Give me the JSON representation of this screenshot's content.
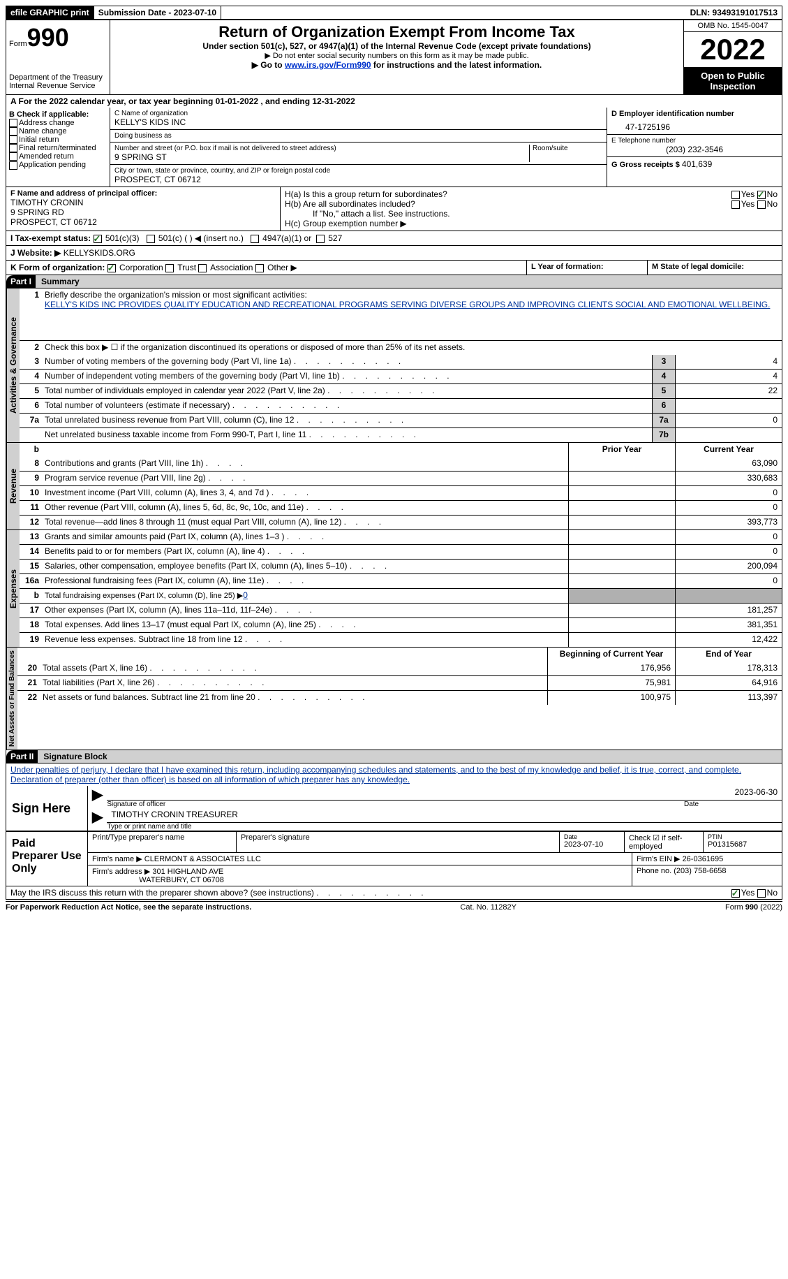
{
  "top": {
    "efile": "efile GRAPHIC print",
    "submission_label": "Submission Date - 2023-07-10",
    "dln_label": "DLN: 93493191017513"
  },
  "header": {
    "form_label": "Form",
    "form_num": "990",
    "dept": "Department of the Treasury",
    "irs": "Internal Revenue Service",
    "title": "Return of Organization Exempt From Income Tax",
    "subtitle": "Under section 501(c), 527, or 4947(a)(1) of the Internal Revenue Code (except private foundations)",
    "note1": "▶ Do not enter social security numbers on this form as it may be made public.",
    "note2_pre": "▶ Go to ",
    "note2_link": "www.irs.gov/Form990",
    "note2_post": " for instructions and the latest information.",
    "omb": "OMB No. 1545-0047",
    "year": "2022",
    "inspect": "Open to Public Inspection"
  },
  "period": "A For the 2022 calendar year, or tax year beginning 01-01-2022     , and ending 12-31-2022",
  "sectionB": {
    "label": "B Check if applicable:",
    "items": [
      "Address change",
      "Name change",
      "Initial return",
      "Final return/terminated",
      "Amended return",
      "Application pending"
    ]
  },
  "sectionC": {
    "name_label": "C Name of organization",
    "name": "KELLY'S KIDS INC",
    "dba_label": "Doing business as",
    "street_label": "Number and street (or P.O. box if mail is not delivered to street address)",
    "street": "9 SPRING ST",
    "room_label": "Room/suite",
    "city_label": "City or town, state or province, country, and ZIP or foreign postal code",
    "city": "PROSPECT, CT  06712"
  },
  "sectionD": {
    "ein_label": "D Employer identification number",
    "ein": "47-1725196",
    "phone_label": "E Telephone number",
    "phone": "(203) 232-3546",
    "gross_label": "G Gross receipts $ ",
    "gross": "401,639"
  },
  "sectionF": {
    "label": "F  Name and address of principal officer:",
    "name": "TIMOTHY CRONIN",
    "street": "9 SPRING RD",
    "city": "PROSPECT, CT  06712"
  },
  "sectionH": {
    "ha_label": "H(a)  Is this a group return for subordinates?",
    "hb_label": "H(b)  Are all subordinates included?",
    "hb_note": "If \"No,\" attach a list. See instructions.",
    "hc_label": "H(c)  Group exemption number ▶",
    "yes": "Yes",
    "no": "No"
  },
  "sectionI": {
    "label": "I   Tax-exempt status:",
    "opt1": "501(c)(3)",
    "opt2": "501(c) (  ) ◀ (insert no.)",
    "opt3": "4947(a)(1) or",
    "opt4": "527"
  },
  "sectionJ": {
    "label": "J   Website: ▶",
    "val": "  KELLYSKIDS.ORG"
  },
  "sectionK": {
    "label": "K Form of organization:",
    "opts": [
      "Corporation",
      "Trust",
      "Association",
      "Other ▶"
    ],
    "L": "L Year of formation:",
    "M": "M State of legal domicile:"
  },
  "part1": {
    "label": "Part I",
    "title": "Summary",
    "vlabel_act": "Activities & Governance",
    "vlabel_rev": "Revenue",
    "vlabel_exp": "Expenses",
    "vlabel_net": "Net Assets or Fund Balances",
    "line1_label": "Briefly describe the organization's mission or most significant activities:",
    "mission": "KELLY'S KIDS INC PROVIDES QUALITY EDUCATION AND RECREATIONAL PROGRAMS SERVING DIVERSE GROUPS AND IMPROVING CLIENTS SOCIAL AND EMOTIONAL WELLBEING.",
    "line2": "Check this box ▶ ☐  if the organization discontinued its operations or disposed of more than 25% of its net assets.",
    "prior_year": "Prior Year",
    "current_year": "Current Year",
    "beg_year": "Beginning of Current Year",
    "end_year": "End of Year",
    "lines_gov": [
      {
        "n": "3",
        "t": "Number of voting members of the governing body (Part VI, line 1a)",
        "box": "3",
        "v": "4"
      },
      {
        "n": "4",
        "t": "Number of independent voting members of the governing body (Part VI, line 1b)",
        "box": "4",
        "v": "4"
      },
      {
        "n": "5",
        "t": "Total number of individuals employed in calendar year 2022 (Part V, line 2a)",
        "box": "5",
        "v": "22"
      },
      {
        "n": "6",
        "t": "Total number of volunteers (estimate if necessary)",
        "box": "6",
        "v": ""
      },
      {
        "n": "7a",
        "t": "Total unrelated business revenue from Part VIII, column (C), line 12",
        "box": "7a",
        "v": "0"
      },
      {
        "n": "",
        "t": "Net unrelated business taxable income from Form 990-T, Part I, line 11",
        "box": "7b",
        "v": ""
      }
    ],
    "lines_rev": [
      {
        "n": "8",
        "t": "Contributions and grants (Part VIII, line 1h)",
        "p": "",
        "c": "63,090"
      },
      {
        "n": "9",
        "t": "Program service revenue (Part VIII, line 2g)",
        "p": "",
        "c": "330,683"
      },
      {
        "n": "10",
        "t": "Investment income (Part VIII, column (A), lines 3, 4, and 7d )",
        "p": "",
        "c": "0"
      },
      {
        "n": "11",
        "t": "Other revenue (Part VIII, column (A), lines 5, 6d, 8c, 9c, 10c, and 11e)",
        "p": "",
        "c": "0"
      },
      {
        "n": "12",
        "t": "Total revenue—add lines 8 through 11 (must equal Part VIII, column (A), line 12)",
        "p": "",
        "c": "393,773"
      }
    ],
    "lines_exp": [
      {
        "n": "13",
        "t": "Grants and similar amounts paid (Part IX, column (A), lines 1–3 )",
        "p": "",
        "c": "0"
      },
      {
        "n": "14",
        "t": "Benefits paid to or for members (Part IX, column (A), line 4)",
        "p": "",
        "c": "0"
      },
      {
        "n": "15",
        "t": "Salaries, other compensation, employee benefits (Part IX, column (A), lines 5–10)",
        "p": "",
        "c": "200,094"
      },
      {
        "n": "16a",
        "t": "Professional fundraising fees (Part IX, column (A), line 11e)",
        "p": "",
        "c": "0"
      },
      {
        "n": "b",
        "t": "Total fundraising expenses (Part IX, column (D), line 25) ▶0",
        "p": "shaded",
        "c": "shaded"
      },
      {
        "n": "17",
        "t": "Other expenses (Part IX, column (A), lines 11a–11d, 11f–24e)",
        "p": "",
        "c": "181,257"
      },
      {
        "n": "18",
        "t": "Total expenses. Add lines 13–17 (must equal Part IX, column (A), line 25)",
        "p": "",
        "c": "381,351"
      },
      {
        "n": "19",
        "t": "Revenue less expenses. Subtract line 18 from line 12",
        "p": "",
        "c": "12,422"
      }
    ],
    "lines_net": [
      {
        "n": "20",
        "t": "Total assets (Part X, line 16)",
        "p": "176,956",
        "c": "178,313"
      },
      {
        "n": "21",
        "t": "Total liabilities (Part X, line 26)",
        "p": "75,981",
        "c": "64,916"
      },
      {
        "n": "22",
        "t": "Net assets or fund balances. Subtract line 21 from line 20",
        "p": "100,975",
        "c": "113,397"
      }
    ]
  },
  "part2": {
    "label": "Part II",
    "title": "Signature Block",
    "penalty": "Under penalties of perjury, I declare that I have examined this return, including accompanying schedules and statements, and to the best of my knowledge and belief, it is true, correct, and complete. Declaration of preparer (other than officer) is based on all information of which preparer has any knowledge."
  },
  "sign": {
    "label": "Sign Here",
    "sig_label": "Signature of officer",
    "date": "2023-06-30",
    "date_label": "Date",
    "name": "TIMOTHY CRONIN  TREASURER",
    "name_label": "Type or print name and title"
  },
  "prep": {
    "label": "Paid Preparer Use Only",
    "r1": {
      "a": "Print/Type preparer's name",
      "b": "Preparer's signature",
      "c_label": "Date",
      "c": "2023-07-10",
      "d_label": "Check ☑  if self-employed",
      "e_label": "PTIN",
      "e": "P01315687"
    },
    "r2": {
      "a": "Firm's name      ▶",
      "a_val": "CLERMONT & ASSOCIATES LLC",
      "b": "Firm's EIN ▶",
      "b_val": "26-0361695"
    },
    "r3": {
      "a": "Firm's address ▶",
      "a_val": "301 HIGHLAND AVE",
      "a_val2": "WATERBURY, CT  06708",
      "b": "Phone no.",
      "b_val": "(203) 758-6658"
    }
  },
  "discuss": "May the IRS discuss this return with the preparer shown above? (see instructions)",
  "footer": {
    "pra": "For Paperwork Reduction Act Notice, see the separate instructions.",
    "cat": "Cat. No. 11282Y",
    "form": "Form 990 (2022)"
  }
}
